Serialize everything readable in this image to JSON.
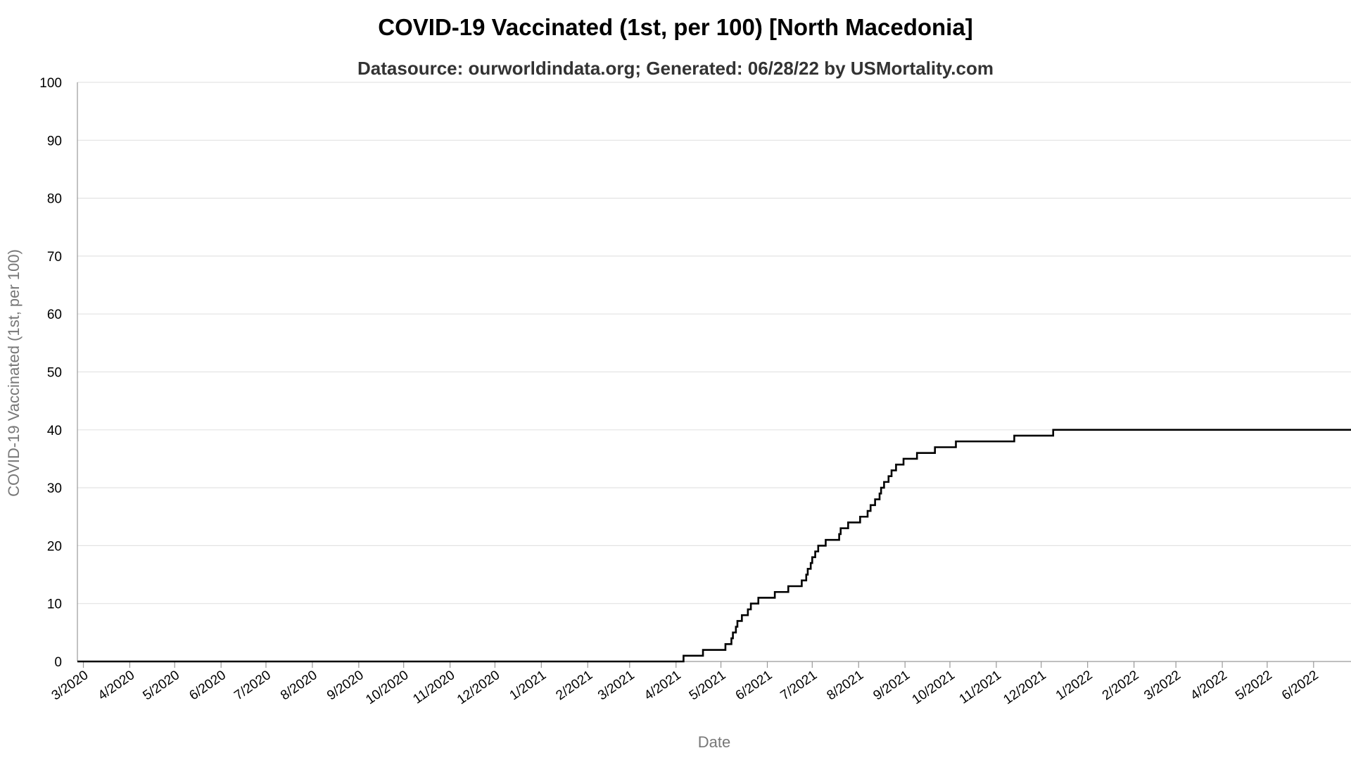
{
  "chart_data": {
    "type": "line",
    "title": "COVID-19 Vaccinated (1st, per 100) [North Macedonia]",
    "subtitle": "Datasource: ourworldindata.org; Generated: 06/28/22 by USMortality.com",
    "xlabel": "Date",
    "ylabel": "COVID-19 Vaccinated (1st, per 100)",
    "ylim": [
      0,
      100
    ],
    "yticks": [
      0,
      10,
      20,
      30,
      40,
      50,
      60,
      70,
      80,
      90,
      100
    ],
    "xlim": [
      "2020-02-26",
      "2022-06-26"
    ],
    "xticks": [
      {
        "date": "2020-03-01",
        "label": "3/2020"
      },
      {
        "date": "2020-04-01",
        "label": "4/2020"
      },
      {
        "date": "2020-05-01",
        "label": "5/2020"
      },
      {
        "date": "2020-06-01",
        "label": "6/2020"
      },
      {
        "date": "2020-07-01",
        "label": "7/2020"
      },
      {
        "date": "2020-08-01",
        "label": "8/2020"
      },
      {
        "date": "2020-09-01",
        "label": "9/2020"
      },
      {
        "date": "2020-10-01",
        "label": "10/2020"
      },
      {
        "date": "2020-11-01",
        "label": "11/2020"
      },
      {
        "date": "2020-12-01",
        "label": "12/2020"
      },
      {
        "date": "2021-01-01",
        "label": "1/2021"
      },
      {
        "date": "2021-02-01",
        "label": "2/2021"
      },
      {
        "date": "2021-03-01",
        "label": "3/2021"
      },
      {
        "date": "2021-04-01",
        "label": "4/2021"
      },
      {
        "date": "2021-05-01",
        "label": "5/2021"
      },
      {
        "date": "2021-06-01",
        "label": "6/2021"
      },
      {
        "date": "2021-07-01",
        "label": "7/2021"
      },
      {
        "date": "2021-08-01",
        "label": "8/2021"
      },
      {
        "date": "2021-09-01",
        "label": "9/2021"
      },
      {
        "date": "2021-10-01",
        "label": "10/2021"
      },
      {
        "date": "2021-11-01",
        "label": "11/2021"
      },
      {
        "date": "2021-12-01",
        "label": "12/2021"
      },
      {
        "date": "2022-01-01",
        "label": "1/2022"
      },
      {
        "date": "2022-02-01",
        "label": "2/2022"
      },
      {
        "date": "2022-03-01",
        "label": "3/2022"
      },
      {
        "date": "2022-04-01",
        "label": "4/2022"
      },
      {
        "date": "2022-05-01",
        "label": "5/2022"
      },
      {
        "date": "2022-06-01",
        "label": "6/2022"
      }
    ],
    "grid": true,
    "series": [
      {
        "color": "#000000",
        "step": true,
        "points": [
          [
            "2020-02-26",
            0
          ],
          [
            "2021-04-05",
            0
          ],
          [
            "2021-04-06",
            1
          ],
          [
            "2021-04-18",
            1
          ],
          [
            "2021-04-19",
            2
          ],
          [
            "2021-05-03",
            2
          ],
          [
            "2021-05-04",
            3
          ],
          [
            "2021-05-07",
            3
          ],
          [
            "2021-05-08",
            4
          ],
          [
            "2021-05-09",
            5
          ],
          [
            "2021-05-11",
            6
          ],
          [
            "2021-05-12",
            7
          ],
          [
            "2021-05-15",
            8
          ],
          [
            "2021-05-19",
            9
          ],
          [
            "2021-05-21",
            10
          ],
          [
            "2021-05-26",
            11
          ],
          [
            "2021-06-06",
            12
          ],
          [
            "2021-06-15",
            13
          ],
          [
            "2021-06-24",
            14
          ],
          [
            "2021-06-27",
            15
          ],
          [
            "2021-06-28",
            16
          ],
          [
            "2021-06-30",
            17
          ],
          [
            "2021-07-01",
            18
          ],
          [
            "2021-07-03",
            19
          ],
          [
            "2021-07-05",
            20
          ],
          [
            "2021-07-10",
            21
          ],
          [
            "2021-07-19",
            22
          ],
          [
            "2021-07-20",
            23
          ],
          [
            "2021-07-25",
            24
          ],
          [
            "2021-08-02",
            25
          ],
          [
            "2021-08-07",
            26
          ],
          [
            "2021-08-09",
            27
          ],
          [
            "2021-08-12",
            28
          ],
          [
            "2021-08-15",
            29
          ],
          [
            "2021-08-16",
            30
          ],
          [
            "2021-08-18",
            31
          ],
          [
            "2021-08-21",
            32
          ],
          [
            "2021-08-23",
            33
          ],
          [
            "2021-08-26",
            34
          ],
          [
            "2021-08-31",
            35
          ],
          [
            "2021-09-09",
            36
          ],
          [
            "2021-09-21",
            37
          ],
          [
            "2021-10-05",
            38
          ],
          [
            "2021-11-13",
            39
          ],
          [
            "2021-12-09",
            40
          ],
          [
            "2022-06-26",
            40
          ]
        ]
      }
    ]
  }
}
